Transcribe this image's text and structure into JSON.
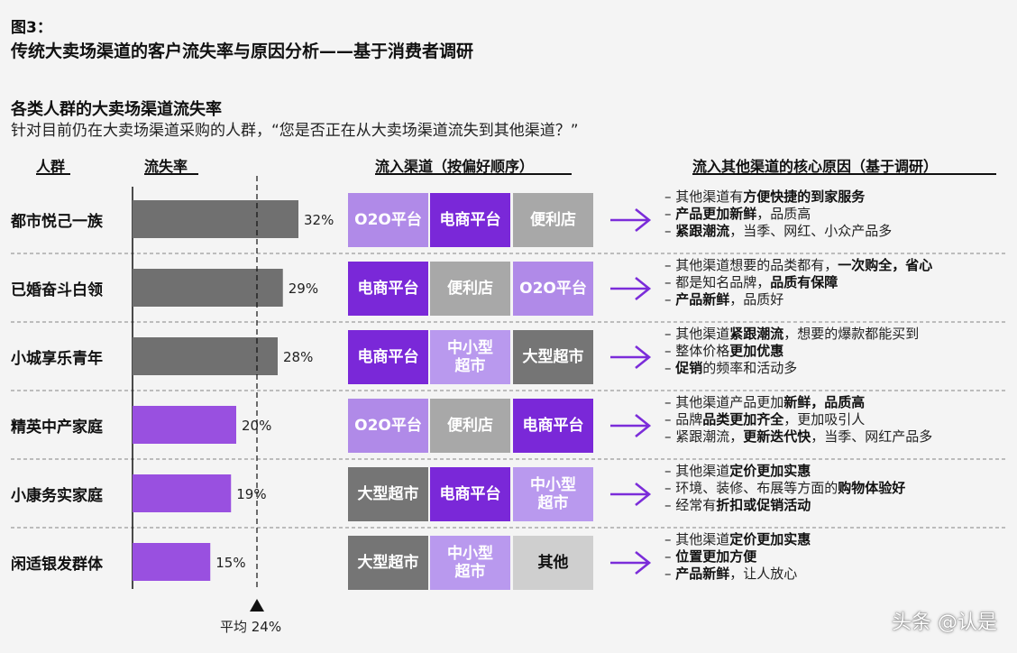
{
  "figure_label": "图3：",
  "figure_title": "传统大卖场渠道的客户流失率与原因分析——基于消费者调研",
  "subtitle": "各类人群的大卖场渠道流失率",
  "description": "针对目前仍在大卖场渠道采购的人群，“您是否正在从大卖场渠道流失到其他渠道？”",
  "headers": {
    "group": "人群",
    "rate": "流失率",
    "channels": "流入渠道（按偏好顺序）",
    "reasons": "流入其他渠道的核心原因（基于调研）"
  },
  "average_label": "平均 24%",
  "watermark": "头条 @认是",
  "colors": {
    "bar_gray": "#707070",
    "bar_purple": "#9950e0",
    "o2o": "#b08ae8",
    "ecom": "#7a28d8",
    "conv": "#a8a8a8",
    "big": "#757575",
    "small": "#b999ee",
    "other": "#cfcfcf",
    "arrow": "#7b2cd9"
  },
  "chart_data": {
    "type": "bar",
    "orientation": "horizontal",
    "categories": [
      "都市悦己一族",
      "已婚奋斗白领",
      "小城享乐青年",
      "精英中产家庭",
      "小康务实家庭",
      "闲适银发群体"
    ],
    "values": [
      32,
      29,
      28,
      20,
      19,
      15
    ],
    "value_labels": [
      "32%",
      "29%",
      "28%",
      "20%",
      "19%",
      "15%"
    ],
    "bar_colors": [
      "#707070",
      "#707070",
      "#707070",
      "#9950e0",
      "#9950e0",
      "#9950e0"
    ],
    "average": 24,
    "xlim": [
      0,
      40
    ]
  },
  "rows": [
    {
      "group": "都市悦己一族",
      "channels": [
        {
          "label": "O2O平台",
          "color": "#b08ae8"
        },
        {
          "label": "电商平台",
          "color": "#7a28d8"
        },
        {
          "label": "便利店",
          "color": "#a8a8a8"
        }
      ],
      "reasons": [
        [
          {
            "t": "– 其他渠道有"
          },
          {
            "t": "方便快捷的到家服务",
            "b": true
          }
        ],
        [
          {
            "t": "– "
          },
          {
            "t": "产品更加新鲜",
            "b": true
          },
          {
            "t": "，品质高"
          }
        ],
        [
          {
            "t": "– "
          },
          {
            "t": "紧跟潮流",
            "b": true
          },
          {
            "t": "，当季、网红、小众产品多"
          }
        ]
      ]
    },
    {
      "group": "已婚奋斗白领",
      "channels": [
        {
          "label": "电商平台",
          "color": "#7a28d8"
        },
        {
          "label": "便利店",
          "color": "#a8a8a8"
        },
        {
          "label": "O2O平台",
          "color": "#b08ae8"
        }
      ],
      "reasons": [
        [
          {
            "t": "– 其他渠道想要的品类都有，"
          },
          {
            "t": "一次购全，省心",
            "b": true
          }
        ],
        [
          {
            "t": "– 都是知名品牌，"
          },
          {
            "t": "品质有保障",
            "b": true
          }
        ],
        [
          {
            "t": "– "
          },
          {
            "t": "产品新鲜",
            "b": true
          },
          {
            "t": "，品质好"
          }
        ]
      ]
    },
    {
      "group": "小城享乐青年",
      "channels": [
        {
          "label": "电商平台",
          "color": "#7a28d8"
        },
        {
          "label": "中小型\n超市",
          "color": "#b999ee"
        },
        {
          "label": "大型超市",
          "color": "#757575"
        }
      ],
      "reasons": [
        [
          {
            "t": "– 其他渠道"
          },
          {
            "t": "紧跟潮流",
            "b": true
          },
          {
            "t": "，想要的爆款都能买到"
          }
        ],
        [
          {
            "t": "– 整体价格"
          },
          {
            "t": "更加优惠",
            "b": true
          }
        ],
        [
          {
            "t": "– "
          },
          {
            "t": "促销",
            "b": true
          },
          {
            "t": "的频率和活动多"
          }
        ]
      ]
    },
    {
      "group": "精英中产家庭",
      "channels": [
        {
          "label": "O2O平台",
          "color": "#b08ae8"
        },
        {
          "label": "便利店",
          "color": "#a8a8a8"
        },
        {
          "label": "电商平台",
          "color": "#7a28d8"
        }
      ],
      "reasons": [
        [
          {
            "t": "– 其他渠道产品更加"
          },
          {
            "t": "新鲜，品质高",
            "b": true
          }
        ],
        [
          {
            "t": "– 品牌"
          },
          {
            "t": "品类更加齐全",
            "b": true
          },
          {
            "t": "，更加吸引人"
          }
        ],
        [
          {
            "t": "– 紧跟潮流，"
          },
          {
            "t": "更新迭代快",
            "b": true
          },
          {
            "t": "，当季、网红产品多"
          }
        ]
      ]
    },
    {
      "group": "小康务实家庭",
      "channels": [
        {
          "label": "大型超市",
          "color": "#757575"
        },
        {
          "label": "电商平台",
          "color": "#7a28d8"
        },
        {
          "label": "中小型\n超市",
          "color": "#b999ee"
        }
      ],
      "reasons": [
        [
          {
            "t": "– 其他渠道"
          },
          {
            "t": "定价更加实惠",
            "b": true
          }
        ],
        [
          {
            "t": "– 环境、装修、布展等方面的"
          },
          {
            "t": "购物体验好",
            "b": true
          }
        ],
        [
          {
            "t": "– 经常有"
          },
          {
            "t": "折扣或促销活动",
            "b": true
          }
        ]
      ]
    },
    {
      "group": "闲适银发群体",
      "channels": [
        {
          "label": "大型超市",
          "color": "#757575"
        },
        {
          "label": "中小型\n超市",
          "color": "#b999ee"
        },
        {
          "label": "其他",
          "color": "#cfcfcf",
          "dark": true
        }
      ],
      "reasons": [
        [
          {
            "t": "– 其他渠道"
          },
          {
            "t": "定价更加实惠",
            "b": true
          }
        ],
        [
          {
            "t": "– "
          },
          {
            "t": "位置更加方便",
            "b": true
          }
        ],
        [
          {
            "t": "– "
          },
          {
            "t": "产品新鲜",
            "b": true
          },
          {
            "t": "，让人放心"
          }
        ]
      ]
    }
  ]
}
